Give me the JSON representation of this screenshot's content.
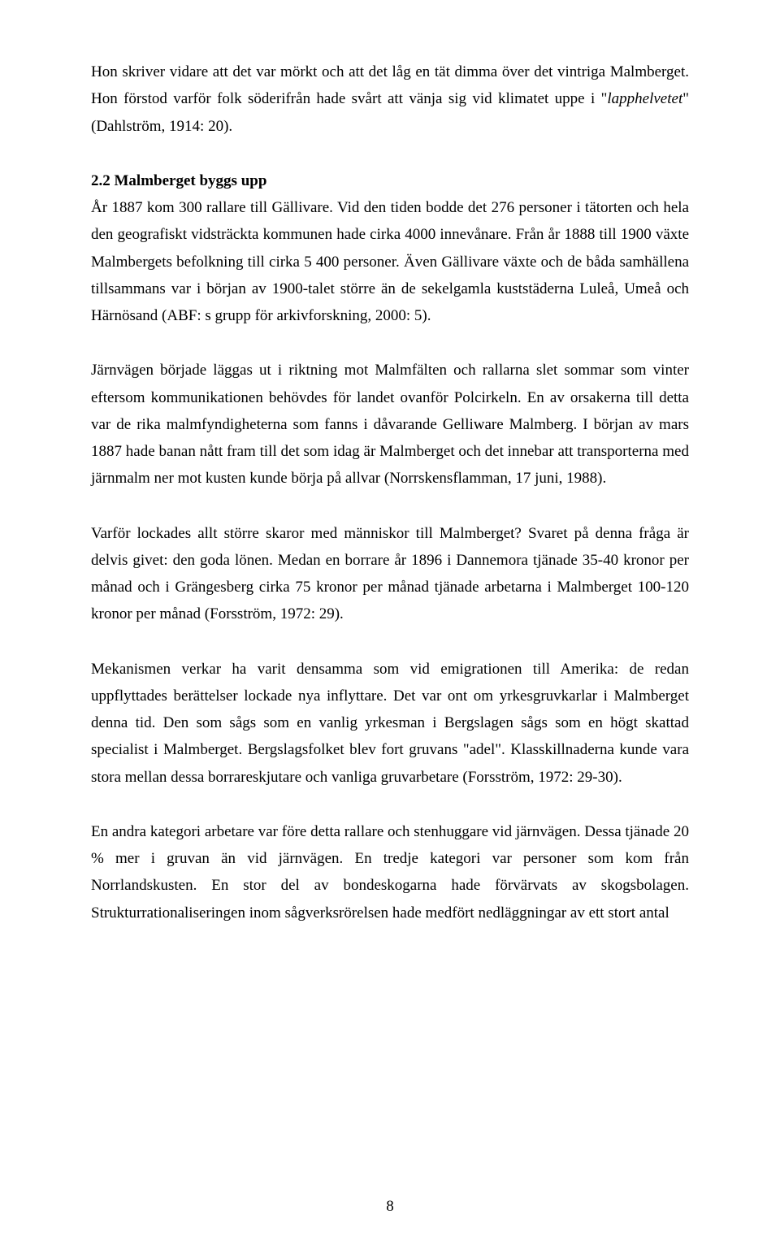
{
  "paragraphs": {
    "p1_a": "Hon skriver vidare att det var mörkt och att det låg en tät dimma över det vintriga Malmberget. Hon förstod varför folk söderifrån hade svårt att vänja sig vid klimatet uppe i \"",
    "p1_italic": "lapphelvetet",
    "p1_b": "\" (Dahlström, 1914: 20).",
    "h1": "2.2 Malmberget byggs upp",
    "p2": "År 1887 kom 300 rallare till Gällivare. Vid den tiden bodde det 276 personer i tätorten och hela den geografiskt vidsträckta kommunen hade cirka 4000 innevånare. Från år 1888 till 1900 växte Malmbergets befolkning till cirka 5 400 personer. Även Gällivare växte och de båda samhällena tillsammans var i början av 1900-talet större än de sekelgamla kuststäderna Luleå, Umeå och Härnösand (ABF: s grupp för arkivforskning, 2000: 5).",
    "p3": "Järnvägen började läggas ut i riktning mot Malmfälten och rallarna slet sommar som vinter eftersom kommunikationen behövdes för landet ovanför Polcirkeln. En av orsakerna till detta var de rika malmfyndigheterna som fanns i dåvarande Gelliware Malmberg. I början av mars 1887 hade banan nått fram till det som idag är Malmberget och det innebar att transporterna med järnmalm ner mot kusten kunde börja på allvar (Norrskensflamman, 17 juni, 1988).",
    "p4": "Varför lockades allt större skaror med människor till Malmberget? Svaret på denna fråga är delvis givet: den goda lönen. Medan en borrare år 1896 i Dannemora tjänade 35-40 kronor per månad och i Grängesberg cirka 75 kronor per månad tjänade arbetarna i Malmberget 100-120 kronor per månad (Forsström, 1972: 29).",
    "p5": "Mekanismen verkar ha varit densamma som vid emigrationen till Amerika: de redan uppflyttades berättelser lockade nya inflyttare. Det var ont om yrkesgruvkarlar i Malmberget denna tid. Den som sågs som en vanlig yrkesman i Bergslagen sågs som en högt skattad specialist i Malmberget. Bergslagsfolket blev fort gruvans \"adel\". Klasskillnaderna kunde vara stora mellan dessa borrareskjutare och vanliga gruvarbetare (Forsström, 1972: 29-30).",
    "p6": "En andra kategori arbetare var före detta rallare och stenhuggare vid järnvägen. Dessa tjänade 20 % mer i gruvan än vid järnvägen. En tredje kategori var personer som kom från Norrlandskusten. En stor del av bondeskogarna hade förvärvats av skogsbolagen. Strukturrationaliseringen inom sågverksrörelsen hade medfört nedläggningar av ett stort antal"
  },
  "pageNumber": "8"
}
